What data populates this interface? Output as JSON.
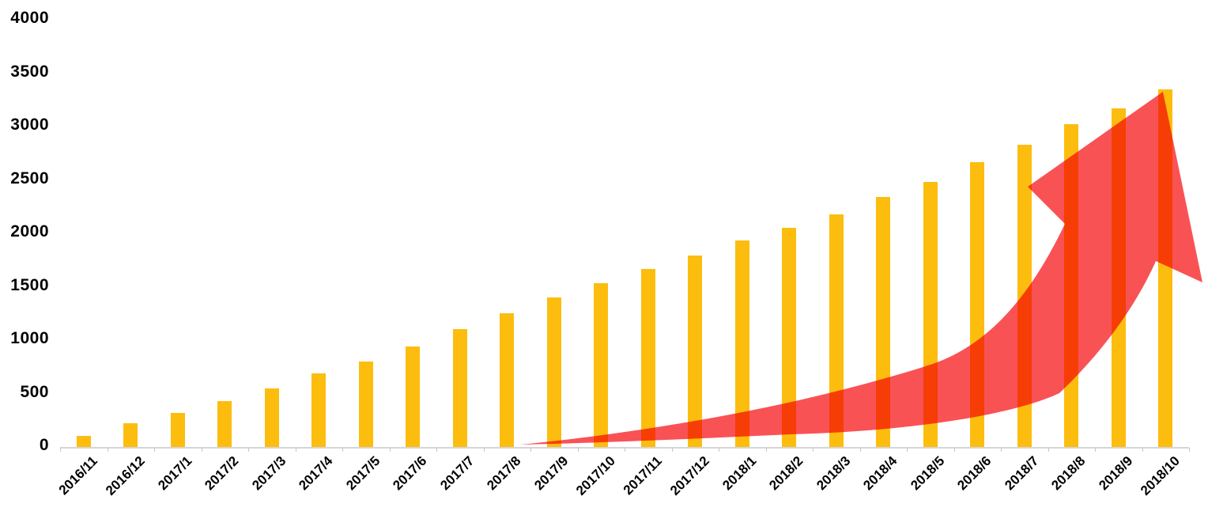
{
  "chart_data": {
    "type": "bar",
    "title": "",
    "xlabel": "",
    "ylabel": "",
    "categories": [
      "2016/11",
      "2016/12",
      "2017/1",
      "2017/2",
      "2017/3",
      "2017/4",
      "2017/5",
      "2017/6",
      "2017/7",
      "2017/8",
      "2017/9",
      "2017/10",
      "2017/11",
      "2017/12",
      "2018/1",
      "2018/2",
      "2018/3",
      "2018/4",
      "2018/5",
      "2018/6",
      "2018/7",
      "2018/8",
      "2018/9",
      "2018/10"
    ],
    "values": [
      100,
      220,
      320,
      430,
      550,
      690,
      800,
      940,
      1100,
      1250,
      1400,
      1530,
      1670,
      1790,
      1930,
      2050,
      2180,
      2340,
      2480,
      2670,
      2830,
      3020,
      3170,
      3350
    ],
    "ylim": [
      0,
      4000
    ],
    "yticks": [
      4000,
      3500,
      3000,
      2500,
      2000,
      1500,
      1000,
      500,
      0
    ],
    "grid": false,
    "legend": null,
    "annotation": "large red curved upward-trend arrow overlaying bars from 2017/8 to 2018/10",
    "colors": {
      "bar": "#fcbd0e",
      "arrow": "#f95255",
      "axis_line": "#d6d6d6",
      "tick": "#c6c6c6",
      "label": "#000000",
      "background": "#ffffff"
    }
  }
}
